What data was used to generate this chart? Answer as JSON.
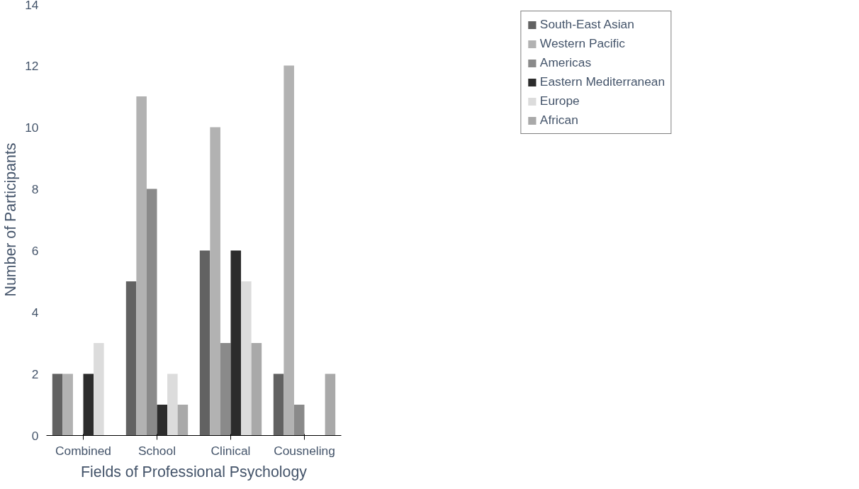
{
  "chart_data": {
    "type": "bar",
    "xlabel": "Fields of Professional Psychology",
    "ylabel": "Number of Participants",
    "categories": [
      "Combined",
      "School",
      "Clinical",
      "Cousneling"
    ],
    "series": [
      {
        "name": "South-East Asian",
        "color": "#626262",
        "values": [
          2,
          5,
          6,
          2
        ]
      },
      {
        "name": "Western Pacific",
        "color": "#b2b2b2",
        "values": [
          2,
          11,
          10,
          12
        ]
      },
      {
        "name": "Americas",
        "color": "#8a8a8a",
        "values": [
          0,
          8,
          3,
          1
        ]
      },
      {
        "name": "Eastern Mediterranean",
        "color": "#2c2c2c",
        "values": [
          2,
          1,
          6,
          0
        ]
      },
      {
        "name": "Europe",
        "color": "#dcdcdc",
        "values": [
          3,
          2,
          5,
          0
        ]
      },
      {
        "name": "African",
        "color": "#a9a9a9",
        "values": [
          0,
          1,
          3,
          2
        ]
      }
    ],
    "ylim": [
      0,
      14
    ],
    "yticks": [
      0,
      2,
      4,
      6,
      8,
      10,
      12,
      14
    ],
    "grid": false,
    "legend": "right"
  }
}
